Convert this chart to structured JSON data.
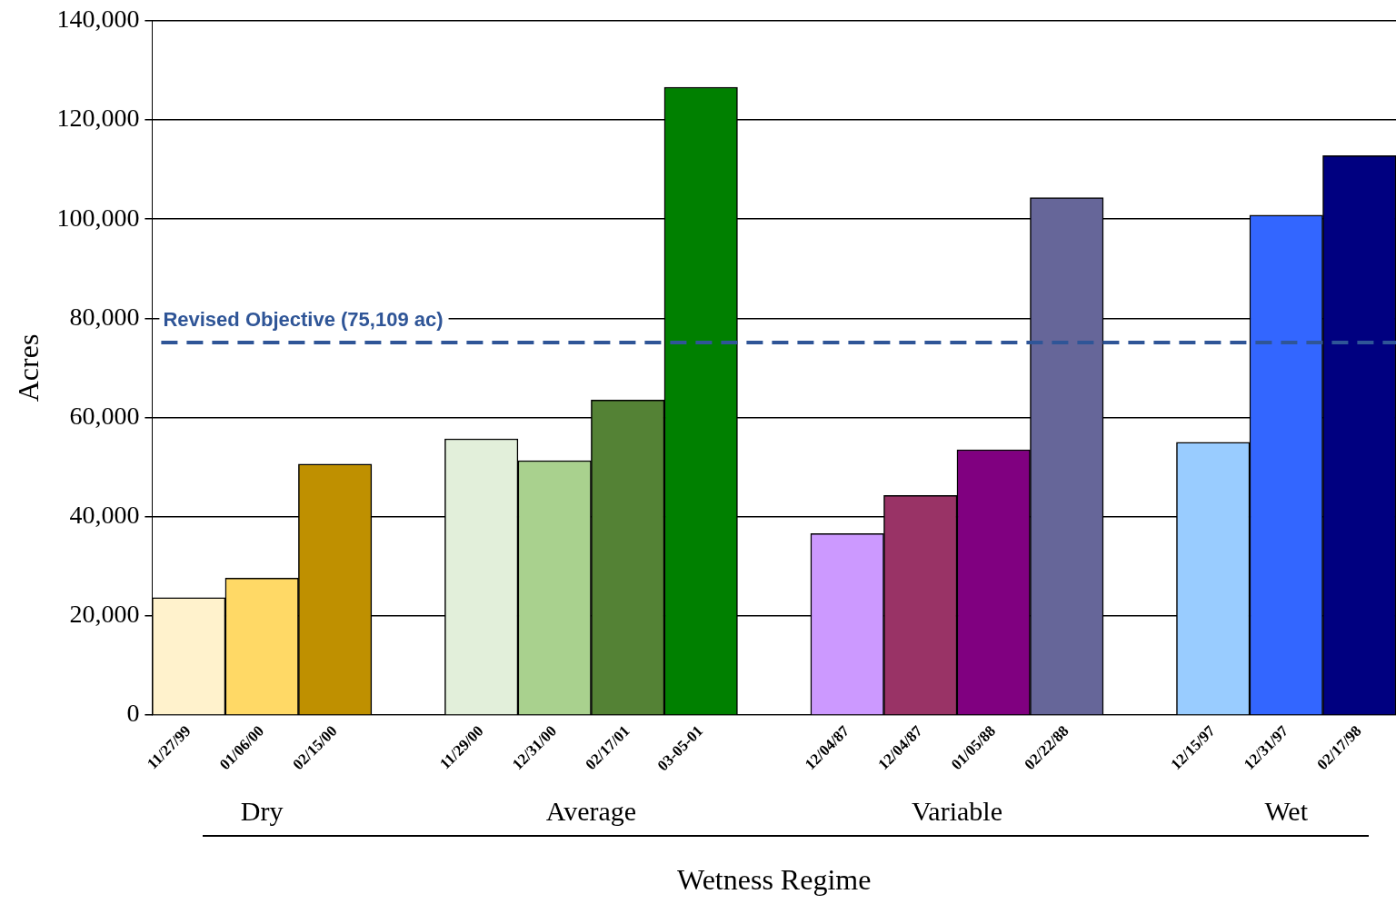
{
  "chart_data": {
    "type": "bar",
    "xlabel": "Wetness Regime",
    "ylabel": "Acres",
    "categories": [
      "11/27/99",
      "01/06/00",
      "02/15/00",
      null,
      "11/29/00",
      "12/31/00",
      "02/17/01",
      "03-05-01",
      null,
      "12/04/87",
      "12/04/87",
      "01/05/88",
      "02/22/88",
      null,
      "12/15/97",
      "12/31/97",
      "02/17/98"
    ],
    "values": [
      23700,
      27600,
      50600,
      null,
      55700,
      51300,
      63500,
      126600,
      null,
      36600,
      44300,
      53500,
      104300,
      null,
      55000,
      100800,
      112800
    ],
    "colors": [
      "#fff2cc",
      "#ffd966",
      "#bf9000",
      null,
      "#e2efda",
      "#a9d18e",
      "#548235",
      "#008000",
      null,
      "#cc99ff",
      "#993366",
      "#800080",
      "#666699",
      null,
      "#99ccff",
      "#3366ff",
      "#000080"
    ],
    "ylim": [
      0,
      140000
    ],
    "yticks": [
      {
        "value": 0,
        "label": "0"
      },
      {
        "value": 20000,
        "label": "20,000"
      },
      {
        "value": 40000,
        "label": "40,000"
      },
      {
        "value": 60000,
        "label": "60,000"
      },
      {
        "value": 80000,
        "label": "80,000"
      },
      {
        "value": 100000,
        "label": "100,000"
      },
      {
        "value": 120000,
        "label": "120,000"
      },
      {
        "value": 140000,
        "label": "140,000"
      }
    ],
    "ref_lines": [
      {
        "axis": "y",
        "value": 75109,
        "label": "Revised Objective (75,109 ac)",
        "color": "#2f5597",
        "line_style": "dashed"
      }
    ],
    "annotations": [
      "Dry",
      "Average",
      "Variable",
      "Wet"
    ],
    "grid": "y",
    "legend": false
  }
}
